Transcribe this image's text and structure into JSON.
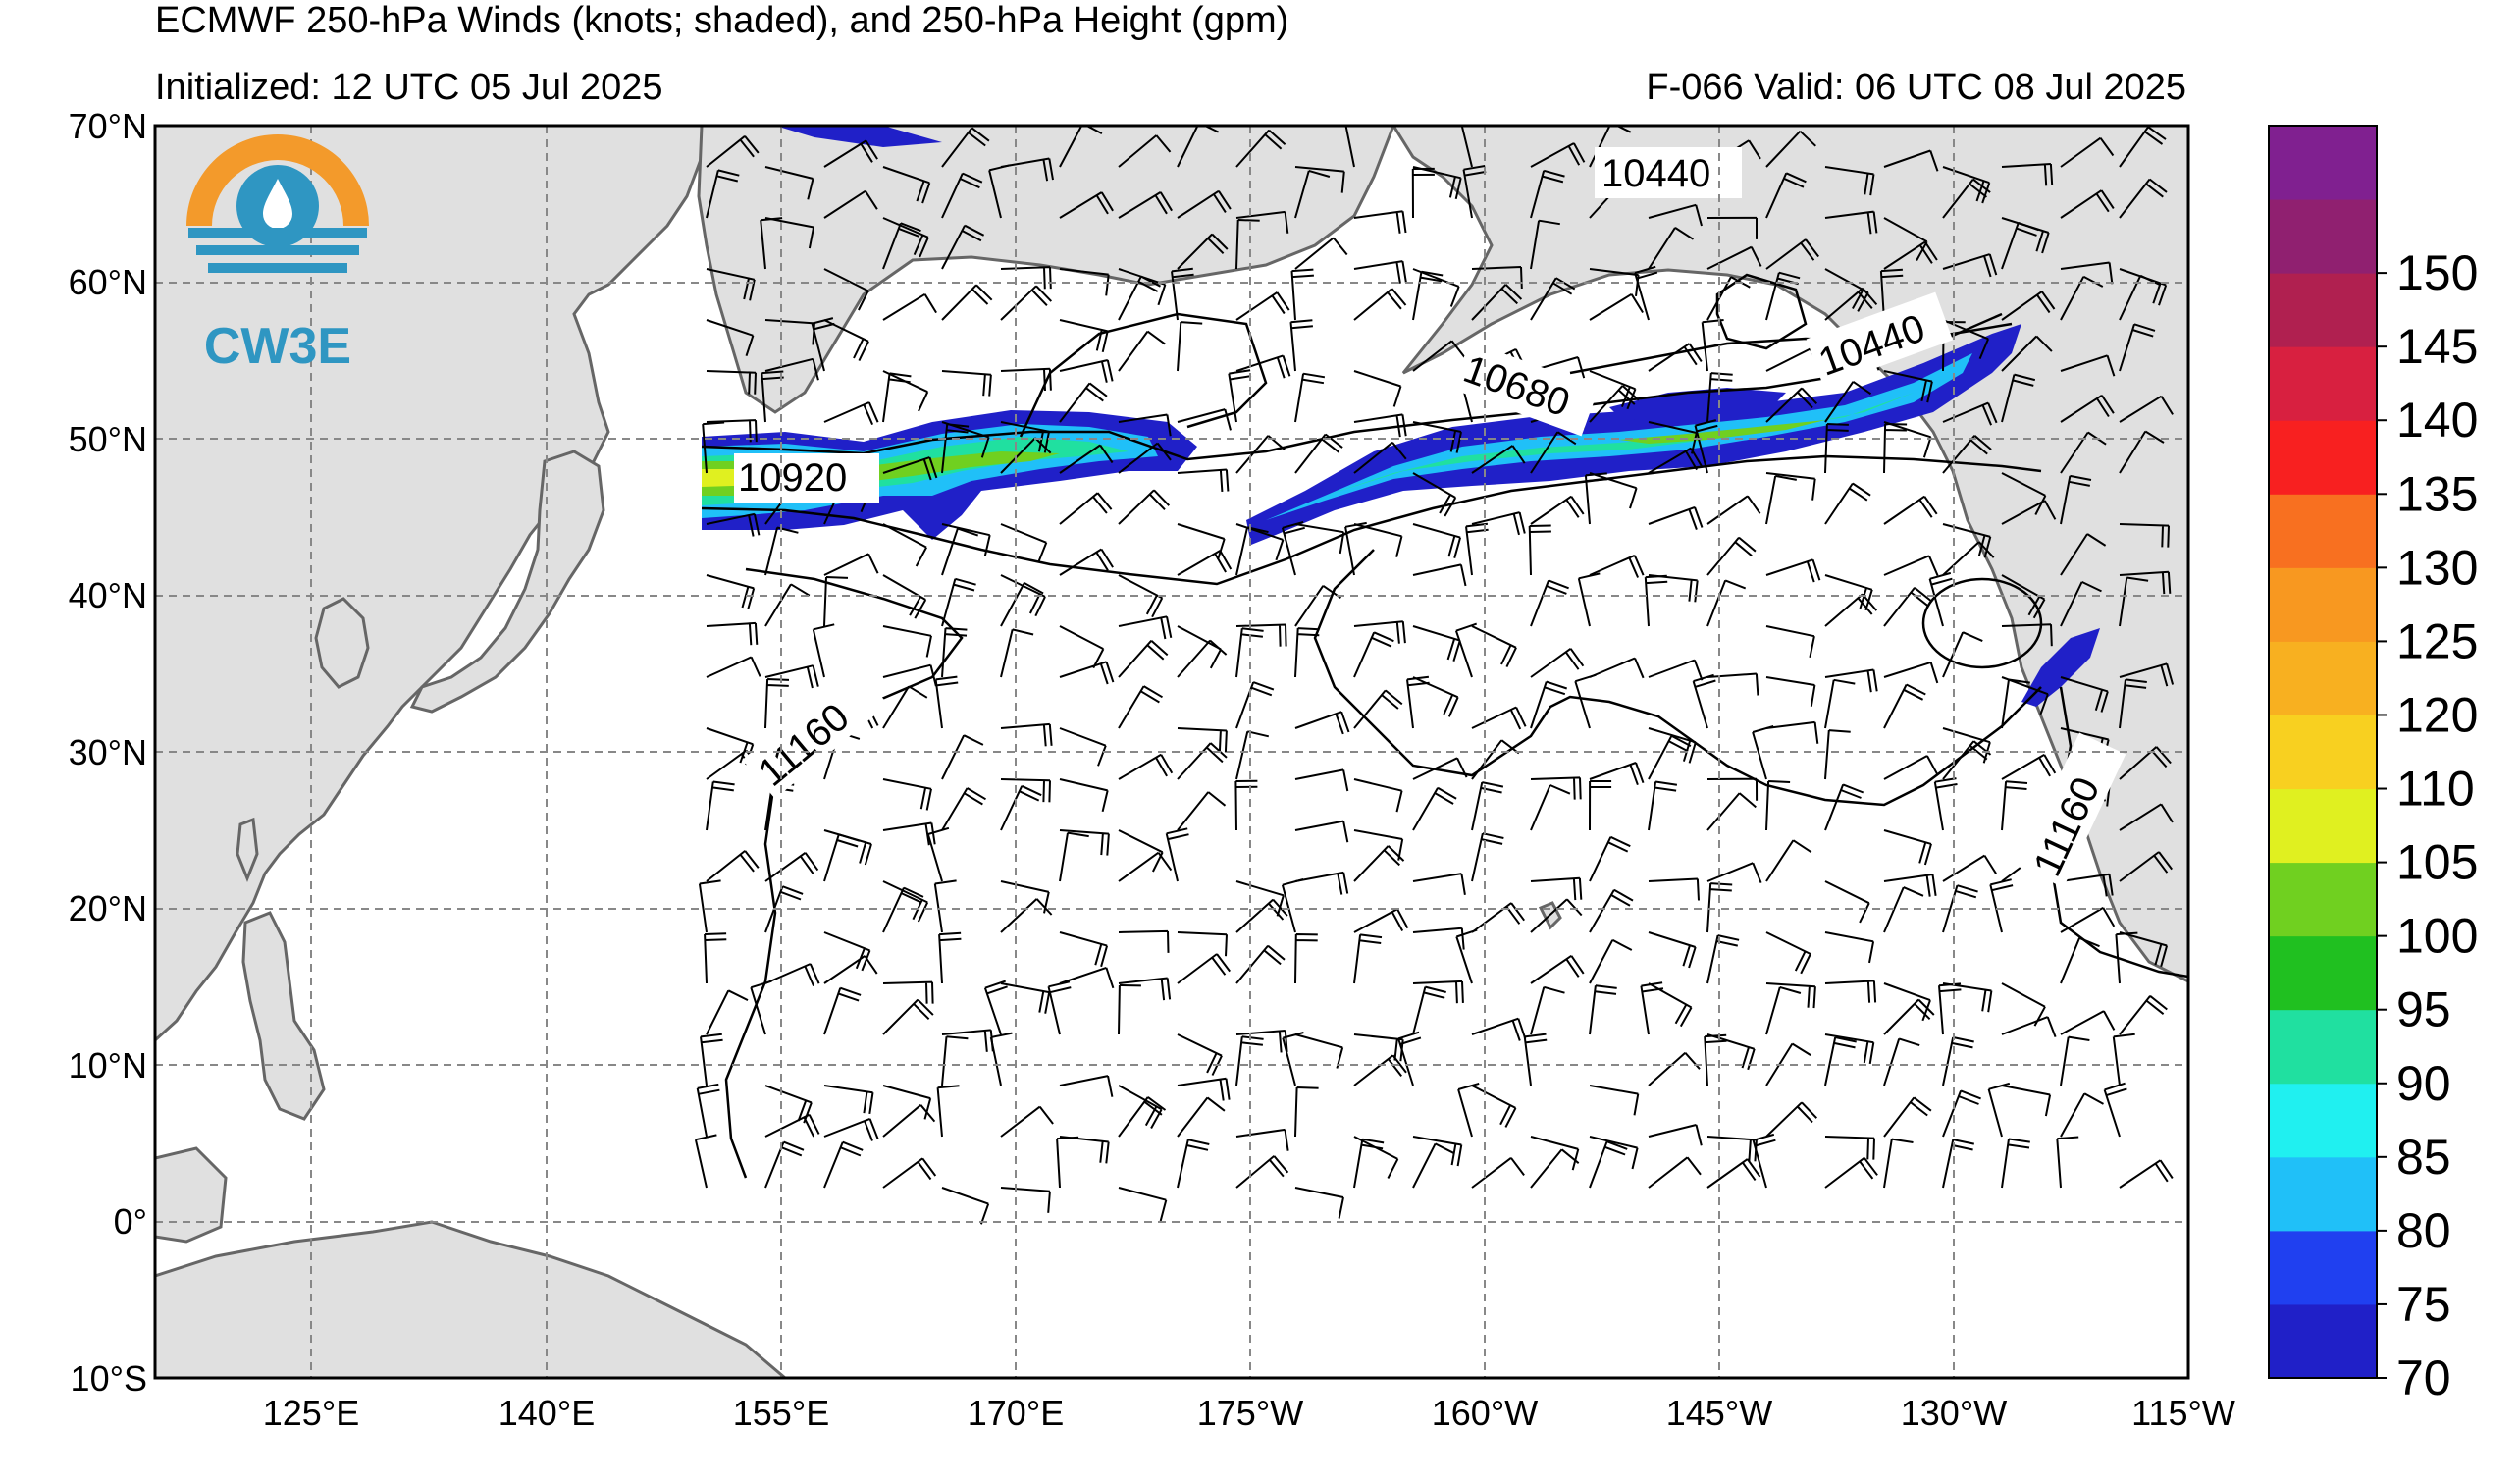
{
  "header": {
    "title": "ECMWF 250-hPa Winds (knots; shaded), and 250-hPa Height (gpm)",
    "initialized": "Initialized: 12 UTC 05 Jul 2025",
    "valid": "F-066  Valid: 06 UTC 08 Jul 2025"
  },
  "logo": {
    "text": "CW3E"
  },
  "axes": {
    "lat_labels": [
      "70°N",
      "60°N",
      "50°N",
      "40°N",
      "30°N",
      "20°N",
      "10°N",
      "0°",
      "10°S"
    ],
    "lon_labels": [
      "125°E",
      "140°E",
      "155°E",
      "170°E",
      "175°W",
      "160°W",
      "145°W",
      "130°W",
      "115°W"
    ]
  },
  "colorbar": {
    "labels": [
      "70",
      "75",
      "80",
      "85",
      "90",
      "95",
      "100",
      "105",
      "110",
      "120",
      "125",
      "130",
      "135",
      "140",
      "145",
      "150"
    ],
    "colors": [
      "#2020c8",
      "#2040f0",
      "#20c0f8",
      "#20f0f0",
      "#20e0a0",
      "#20c020",
      "#70d020",
      "#e0f020",
      "#f8d020",
      "#f8b020",
      "#f89820",
      "#f87020",
      "#f82020",
      "#d82040",
      "#b02050",
      "#902070",
      "#802090"
    ]
  },
  "contour_labels": [
    "10440",
    "10440",
    "10680",
    "10920",
    "11160",
    "11160"
  ],
  "colors": {
    "land": "#e0e0e0",
    "coast": "#666666",
    "grid": "#888888"
  }
}
